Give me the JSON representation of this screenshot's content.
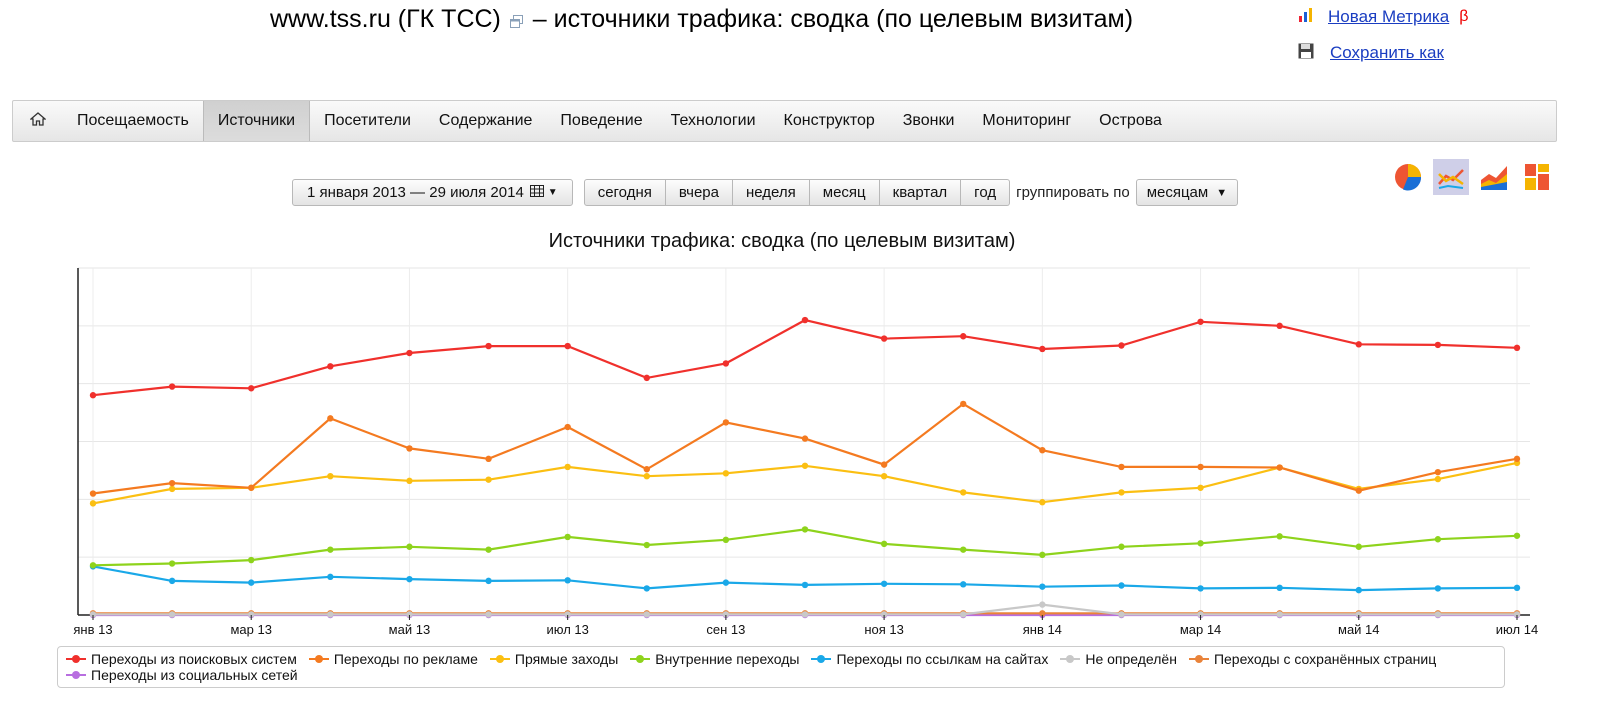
{
  "page": {
    "title": "www.tss.ru (ГК ТСС)",
    "title_suffix": "– источники трафика: сводка (по целевым визитам)"
  },
  "top_links": {
    "new_metrika": "Новая Метрика",
    "beta": "β",
    "save_as": "Сохранить как"
  },
  "nav": {
    "items": [
      "Посещаемость",
      "Источники",
      "Посетители",
      "Содержание",
      "Поведение",
      "Технологии",
      "Конструктор",
      "Звонки",
      "Мониторинг",
      "Острова"
    ],
    "active_index": 1
  },
  "toolbar": {
    "date_range": "1 января 2013 — 29 июля 2014",
    "periods": [
      "сегодня",
      "вчера",
      "неделя",
      "месяц",
      "квартал",
      "год"
    ],
    "group_label": "группировать по",
    "group_value": "месяцам"
  },
  "chart_types": [
    "pie-chart-icon",
    "line-chart-icon",
    "area-chart-icon",
    "stacked-chart-icon"
  ],
  "chart_data": {
    "type": "line",
    "title": "Источники трафика: сводка (по целевым визитам)",
    "x": [
      "янв 13",
      "фев 13",
      "мар 13",
      "апр 13",
      "май 13",
      "июн 13",
      "июл 13",
      "авг 13",
      "сен 13",
      "окт 13",
      "ноя 13",
      "дек 13",
      "янв 14",
      "фев 14",
      "мар 14",
      "апр 14",
      "май 14",
      "июн 14",
      "июл 14"
    ],
    "x_tick_labels": [
      "янв 13",
      "мар 13",
      "май 13",
      "июл 13",
      "сен 13",
      "ноя 13",
      "янв 14",
      "мар 14",
      "май 14",
      "июл 14"
    ],
    "ylim": [
      0,
      6
    ],
    "grid": true,
    "legend_position": "bottom",
    "series": [
      {
        "name": "Переходы из поисковых систем",
        "color": "#f0302c",
        "values": [
          3.8,
          3.95,
          3.92,
          4.3,
          4.53,
          4.65,
          4.65,
          4.1,
          4.35,
          5.1,
          4.78,
          4.82,
          4.6,
          4.66,
          5.07,
          5.0,
          4.68,
          4.67,
          4.62
        ]
      },
      {
        "name": "Переходы по рекламе",
        "color": "#f47a20",
        "values": [
          2.1,
          2.28,
          2.2,
          3.4,
          2.88,
          2.7,
          3.25,
          2.52,
          3.33,
          3.05,
          2.6,
          3.65,
          2.85,
          2.56,
          2.56,
          2.55,
          2.15,
          2.47,
          2.7
        ]
      },
      {
        "name": "Прямые заходы",
        "color": "#fbbf12",
        "values": [
          1.93,
          2.18,
          2.2,
          2.4,
          2.32,
          2.34,
          2.56,
          2.4,
          2.45,
          2.58,
          2.4,
          2.12,
          1.95,
          2.12,
          2.2,
          2.55,
          2.18,
          2.35,
          2.63
        ]
      },
      {
        "name": "Внутренние переходы",
        "color": "#8ed31c",
        "values": [
          0.86,
          0.89,
          0.95,
          1.13,
          1.18,
          1.13,
          1.35,
          1.21,
          1.3,
          1.48,
          1.23,
          1.13,
          1.04,
          1.18,
          1.24,
          1.36,
          1.18,
          1.31,
          1.37
        ]
      },
      {
        "name": "Переходы по ссылкам на сайтах",
        "color": "#1aa8e8",
        "values": [
          0.84,
          0.59,
          0.56,
          0.66,
          0.62,
          0.59,
          0.6,
          0.46,
          0.56,
          0.52,
          0.54,
          0.53,
          0.49,
          0.51,
          0.46,
          0.47,
          0.43,
          0.46,
          0.47
        ]
      },
      {
        "name": "Не определён",
        "color": "#c8c8c8",
        "values": [
          0.01,
          0.01,
          0.01,
          0.01,
          0.01,
          0.01,
          0.01,
          0.01,
          0.01,
          0.01,
          0.01,
          0.01,
          0.18,
          0.01,
          0.01,
          0.01,
          0.01,
          0.01,
          0.01
        ]
      },
      {
        "name": "Переходы с сохранённых страниц",
        "color": "#e9833a",
        "values": [
          0.03,
          0.03,
          0.03,
          0.03,
          0.03,
          0.03,
          0.03,
          0.03,
          0.03,
          0.03,
          0.03,
          0.03,
          0.03,
          0.03,
          0.03,
          0.03,
          0.03,
          0.03,
          0.03
        ]
      },
      {
        "name": "Переходы из социальных сетей",
        "color": "#b86ee0",
        "values": [
          0.0,
          0.0,
          0.0,
          0.0,
          0.0,
          0.0,
          0.0,
          0.0,
          0.0,
          0.0,
          0.0,
          0.0,
          0.0,
          0.0,
          0.0,
          0.0,
          0.0,
          0.0,
          0.0
        ]
      }
    ]
  }
}
